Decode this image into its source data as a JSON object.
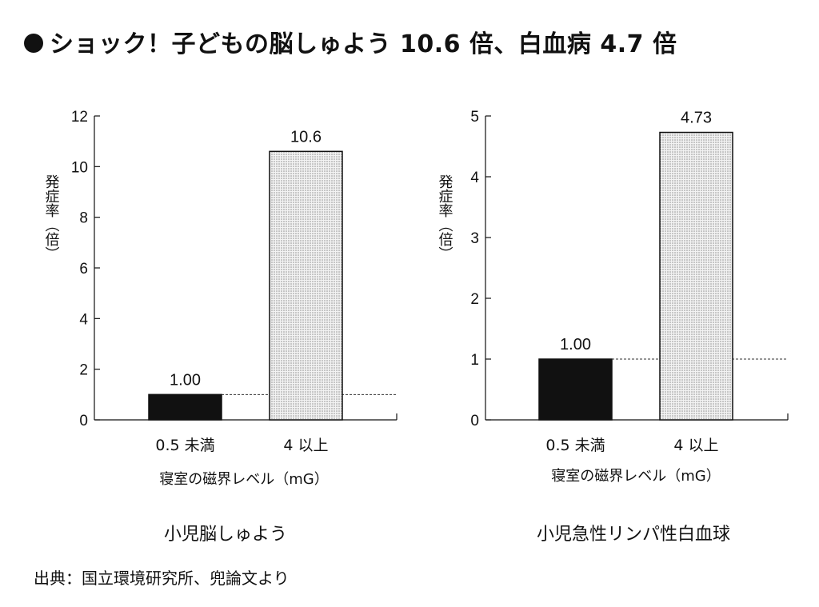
{
  "title": "ショック！子どもの脳しゅよう 10.6 倍、白血病 4.7 倍",
  "source": "出典：国立環境研究所、兜論文より",
  "chart_data": [
    {
      "type": "bar",
      "caption": "小児脳しゅよう",
      "ylabel": "発症率（倍）",
      "xlabel": "寝室の磁界レベル（mG）",
      "categories": [
        "0.5 未満",
        "4 以上"
      ],
      "values": [
        1.0,
        10.6
      ],
      "value_labels": [
        "1.00",
        "10.6"
      ],
      "ylim": [
        0,
        12
      ],
      "yticks": [
        0,
        2,
        4,
        6,
        8,
        10,
        12
      ],
      "reference_line": 1.0,
      "bar_styles": [
        "solid",
        "dotted"
      ],
      "colors": {
        "solid": "#111111",
        "dotted": "#d9d9d9"
      }
    },
    {
      "type": "bar",
      "caption": "小児急性リンパ性白血球",
      "ylabel": "発症率（倍）",
      "xlabel": "寝室の磁界レベル（mG）",
      "categories": [
        "0.5 未満",
        "4 以上"
      ],
      "values": [
        1.0,
        4.73
      ],
      "value_labels": [
        "1.00",
        "4.73"
      ],
      "ylim": [
        0,
        5
      ],
      "yticks": [
        0,
        1,
        2,
        3,
        4,
        5
      ],
      "reference_line": 1.0,
      "bar_styles": [
        "solid",
        "dotted"
      ],
      "colors": {
        "solid": "#111111",
        "dotted": "#d9d9d9"
      }
    }
  ]
}
